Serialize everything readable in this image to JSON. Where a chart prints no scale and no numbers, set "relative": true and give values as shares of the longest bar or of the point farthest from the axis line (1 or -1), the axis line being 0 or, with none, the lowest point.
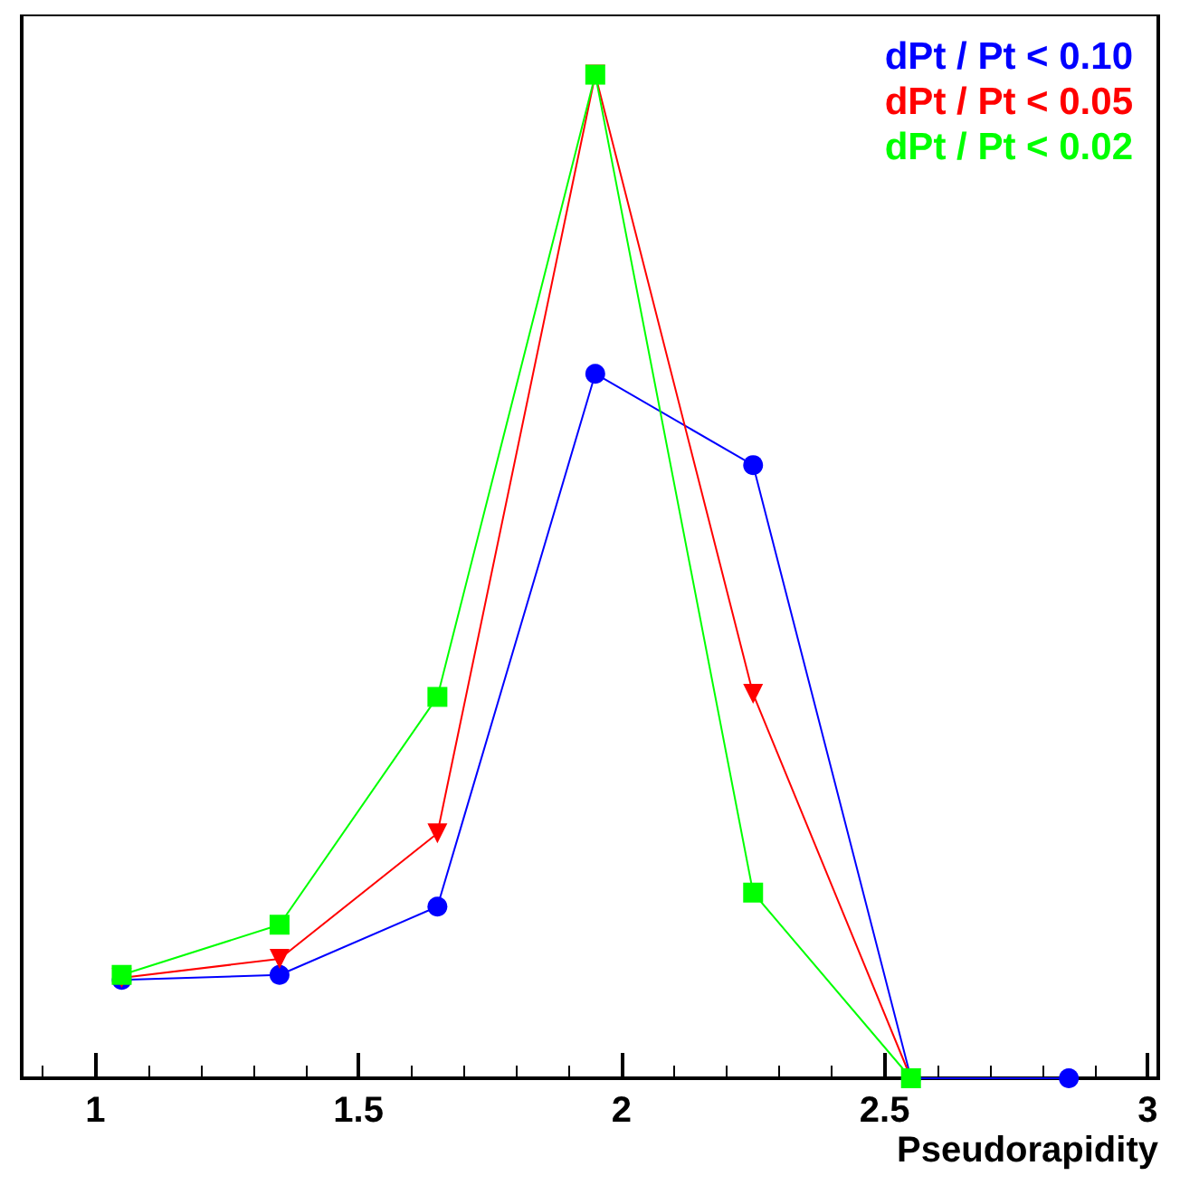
{
  "chart_data": {
    "type": "line",
    "relative": true,
    "xlabel": "Pseudorapidity",
    "xlim": [
      0.86,
      3.02
    ],
    "xticks": [
      1,
      1.5,
      2,
      2.5,
      3
    ],
    "grid": false,
    "legend": "top right",
    "line_style": "solid",
    "series": [
      {
        "name": "dPt / Pt < 0.10",
        "color": "#0000ff",
        "marker": "circle",
        "x": [
          1.05,
          1.35,
          1.65,
          1.95,
          2.25,
          2.55,
          2.85
        ],
        "values": [
          0.098,
          0.103,
          0.171,
          0.702,
          0.611,
          0,
          0
        ]
      },
      {
        "name": "dPt / Pt < 0.05",
        "color": "#ff0000",
        "marker": "triangle",
        "x": [
          1.05,
          1.35,
          1.65,
          1.95,
          2.25,
          2.55
        ],
        "values": [
          0.1,
          0.119,
          0.244,
          1,
          0.383,
          0
        ]
      },
      {
        "name": "dPt / Pt < 0.02",
        "color": "#00ff00",
        "marker": "square",
        "x": [
          1.05,
          1.35,
          1.65,
          1.95,
          2.25,
          2.55
        ],
        "values": [
          0.103,
          0.153,
          0.38,
          1,
          0.185,
          0
        ]
      }
    ]
  }
}
